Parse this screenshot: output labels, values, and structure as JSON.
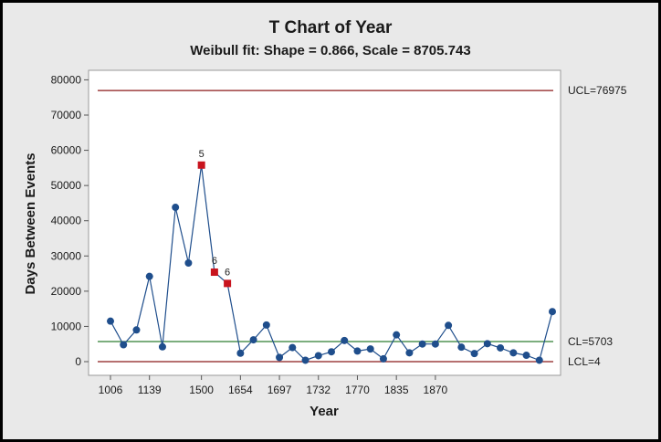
{
  "chart_data": {
    "type": "line",
    "title": "T Chart of Year",
    "subtitle": "Weibull fit: Shape = 0.866, Scale = 8705.743",
    "xlabel": "Year",
    "ylabel": "Days Between Events",
    "ylim": [
      0,
      80000
    ],
    "y_ticks": [
      "0",
      "10000",
      "20000",
      "30000",
      "40000",
      "50000",
      "60000",
      "70000",
      "80000"
    ],
    "x_tick_labels": [
      "1006",
      "1139",
      "1500",
      "1654",
      "1697",
      "1732",
      "1770",
      "1835",
      "1870"
    ],
    "x_tick_points": [
      1,
      4,
      8,
      11,
      14,
      17,
      20,
      23,
      26
    ],
    "control_limits": {
      "ucl": {
        "label": "UCL=76975",
        "value": 76975,
        "color": "#8b1a1a"
      },
      "cl": {
        "label": "CL=5703",
        "value": 5703,
        "color": "#2e7d32"
      },
      "lcl": {
        "label": "LCL=4",
        "value": 4,
        "color": "#8b1a1a"
      }
    },
    "series": [
      {
        "values": [
          11500,
          4800,
          9000,
          24200,
          4200,
          43800,
          28000,
          55800,
          25400,
          22200,
          2400,
          6200,
          10400,
          1200,
          4000,
          400,
          1700,
          2800,
          6000,
          3000,
          3600,
          800,
          7600,
          2500,
          5000,
          5000,
          10300,
          4100,
          2300,
          5100,
          3900,
          2500,
          1800,
          400,
          14200
        ],
        "color": "#1f4e8c"
      }
    ],
    "flagged_points": [
      {
        "index": 7,
        "label": "5"
      },
      {
        "index": 8,
        "label": "6"
      },
      {
        "index": 9,
        "label": "6"
      }
    ],
    "flag_color": "#c8141e",
    "grid": false,
    "legend": "none"
  }
}
